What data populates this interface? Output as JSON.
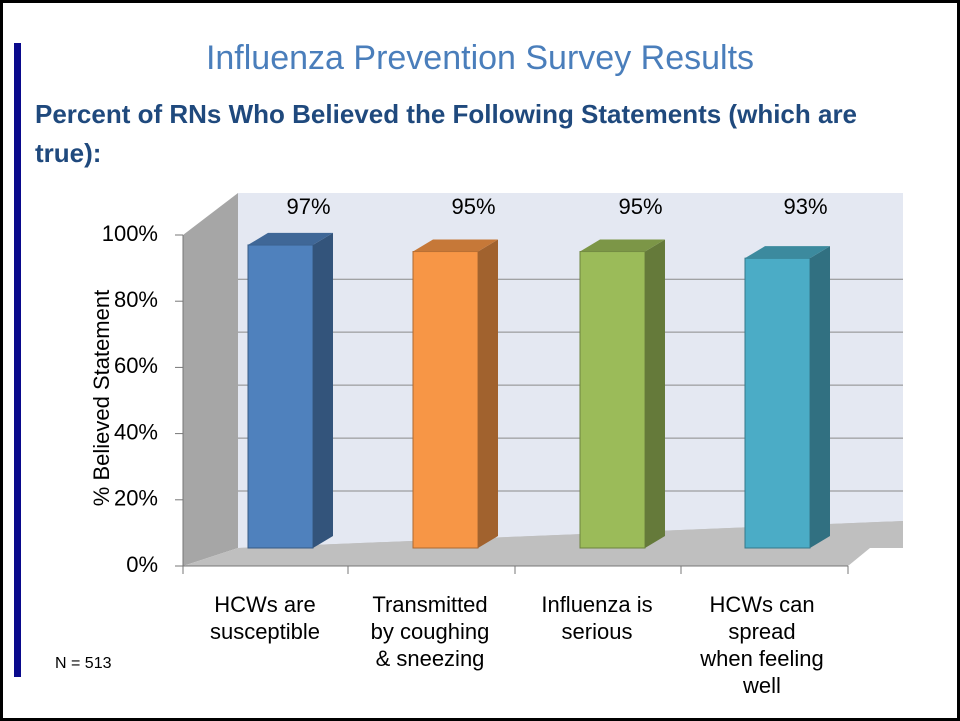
{
  "title": "Influenza Prevention Survey Results",
  "subtitle": "Percent of RNs Who Believed the Following Statements (which are true):",
  "note": "N = 513",
  "chart_data": {
    "type": "bar",
    "ylabel": "% Believed Statement",
    "categories": [
      "HCWs are\nsusceptible",
      "Transmitted\nby coughing\n& sneezing",
      "Influenza is\nserious",
      "HCWs can\nspread\nwhen feeling\nwell"
    ],
    "values": [
      97,
      95,
      95,
      93
    ],
    "value_labels": [
      "97%",
      "95%",
      "95%",
      "93%"
    ],
    "colors": [
      "#4f81bd",
      "#f79646",
      "#9bbb59",
      "#4bacc6"
    ],
    "ylim": [
      0,
      100
    ],
    "yticks": [
      {
        "value": 0,
        "label": "0%"
      },
      {
        "value": 20,
        "label": "20%"
      },
      {
        "value": 40,
        "label": "40%"
      },
      {
        "value": 60,
        "label": "60%"
      },
      {
        "value": 80,
        "label": "80%"
      },
      {
        "value": 100,
        "label": "100%"
      }
    ],
    "grid": true
  }
}
